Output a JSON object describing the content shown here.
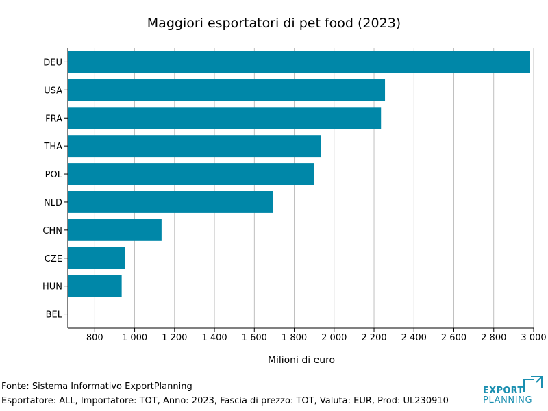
{
  "chart_data": {
    "type": "bar",
    "orientation": "horizontal",
    "title": "Maggiori esportatori di pet food (2023)",
    "xlabel": "Milioni di euro",
    "ylabel": "",
    "categories": [
      "DEU",
      "USA",
      "FRA",
      "THA",
      "POL",
      "NLD",
      "CHN",
      "CZE",
      "HUN",
      "BEL"
    ],
    "values": [
      2980,
      2255,
      2235,
      1935,
      1900,
      1695,
      1135,
      950,
      935,
      660
    ],
    "xlim": [
      665,
      3000
    ],
    "xticks": [
      800,
      1000,
      1200,
      1400,
      1600,
      1800,
      2000,
      2200,
      2400,
      2600,
      2800,
      3000
    ],
    "xtick_labels": [
      "800",
      "1 000",
      "1 200",
      "1 400",
      "1 600",
      "1 800",
      "2 000",
      "2 200",
      "2 400",
      "2 600",
      "2 800",
      "3 000"
    ],
    "grid": "vertical",
    "bar_color": "#0087a8"
  },
  "footer": {
    "source": "Fonte: Sistema Informativo ExportPlanning",
    "details": "Esportatore: ALL, Importatore: TOT, Anno: 2023, Fascia di prezzo: TOT, Valuta: EUR, Prod: UL230910"
  },
  "logo": {
    "line1": "EXPORT",
    "line2": "PLANNING",
    "color": "#1b8fb0"
  }
}
